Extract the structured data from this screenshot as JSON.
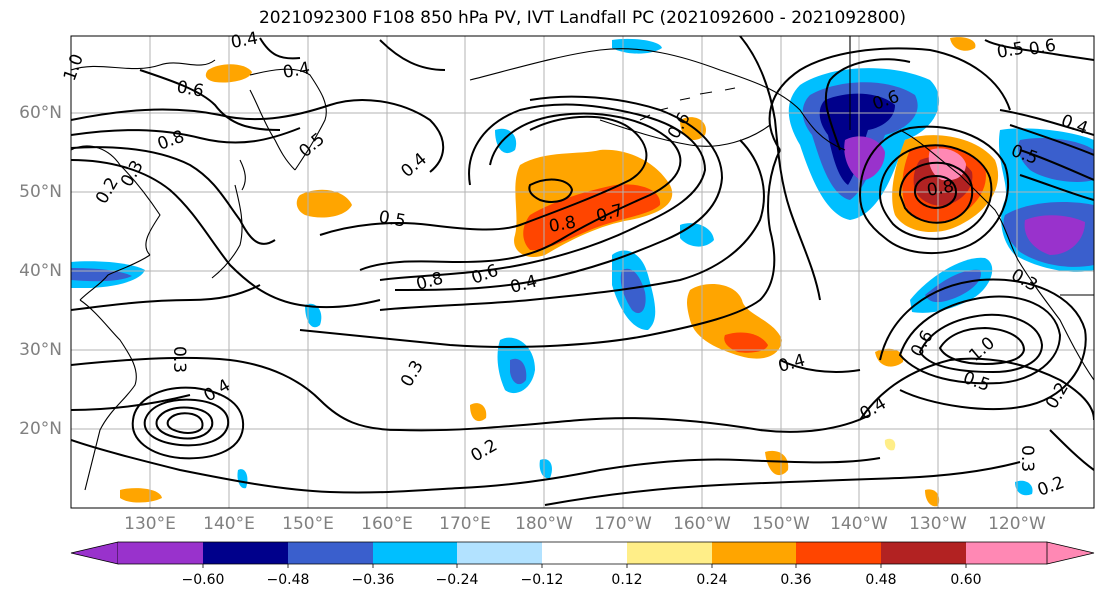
{
  "title": "2021092300 F108 850 hPa PV, IVT Landfall PC (2021092600 - 2021092800)",
  "lat_labels": [
    "60°N",
    "50°N",
    "40°N",
    "30°N",
    "20°N"
  ],
  "lon_labels": [
    "130°E",
    "140°E",
    "150°E",
    "160°E",
    "170°E",
    "180°W",
    "170°W",
    "160°W",
    "150°W",
    "140°W",
    "130°W",
    "120°W"
  ],
  "colorbar": {
    "colors": [
      "#9932CC",
      "#00008B",
      "#3A5FCD",
      "#00BFFF",
      "#B2E2FF",
      "#FFFFFF",
      "#FFFFFF",
      "#FFEE88",
      "#FFA500",
      "#FF4500",
      "#B22222",
      "#FF88B4"
    ],
    "ticks": [
      "−0.60",
      "−0.48",
      "−0.36",
      "−0.24",
      "−0.12",
      "0.12",
      "0.24",
      "0.36",
      "0.48",
      "0.60"
    ]
  },
  "contour_labels": [
    "0.4",
    "0.4",
    "0.6",
    "0.8",
    "1.0",
    "0.5",
    "0.4",
    "0.5",
    "0.8",
    "0.7",
    "0.8",
    "0.6",
    "0.4",
    "0.6",
    "0.6",
    "0.5",
    "0.4",
    "0.4",
    "0.3",
    "0.2",
    "0.4",
    "0.5",
    "1.0",
    "0.6",
    "0.8",
    "0.3",
    "0.2",
    "0.2",
    "0.3",
    "0.4",
    "0.3",
    "0.3",
    "0.2",
    "0.6",
    "0.5"
  ]
}
